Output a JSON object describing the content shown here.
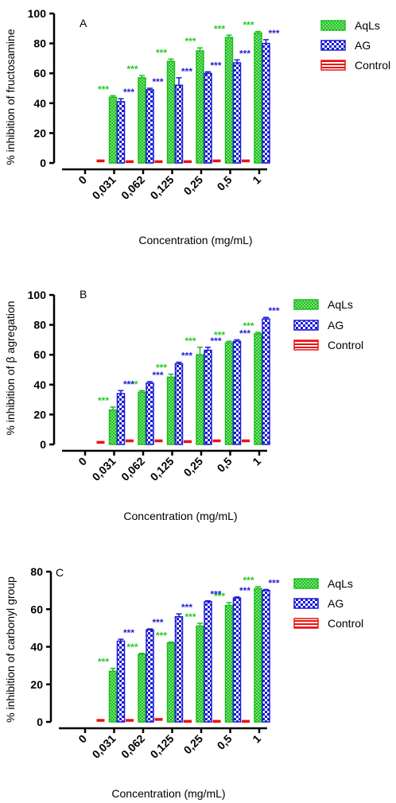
{
  "colors": {
    "aqls": "#1cbf1c",
    "ag": "#1a1ad6",
    "control": "#ee1111",
    "aqls_sig": "#22cc22",
    "ag_sig": "#2222dd"
  },
  "significance_label": "***",
  "chart_data": [
    {
      "type": "bar",
      "panel_label": "A",
      "title": "",
      "xlabel": "Concentration (mg/mL)",
      "ylabel": "% inhibition of fructosamine",
      "categories": [
        "0",
        "0,031",
        "0,062",
        "0,125",
        "0,25",
        "0,5",
        "1"
      ],
      "ylim": [
        0,
        100
      ],
      "yticks": [
        0,
        20,
        40,
        60,
        80,
        100
      ],
      "legend_position": "top-right",
      "series": [
        {
          "name": "AqLs",
          "values": [
            null,
            44,
            57,
            68,
            75,
            84,
            87
          ],
          "errors": [
            null,
            1,
            1.5,
            1.5,
            2,
            1.5,
            1
          ],
          "significance": [
            false,
            true,
            true,
            true,
            true,
            true,
            true
          ]
        },
        {
          "name": "AG",
          "values": [
            null,
            41,
            49,
            52,
            60,
            67,
            80
          ],
          "errors": [
            null,
            2,
            1,
            5,
            1,
            2,
            2.5
          ],
          "significance": [
            false,
            true,
            true,
            true,
            true,
            true,
            true
          ]
        },
        {
          "name": "Control",
          "values": [
            null,
            1,
            0.5,
            0.5,
            0.5,
            1,
            1
          ],
          "errors": [
            null,
            0,
            0,
            0,
            0,
            0,
            0
          ],
          "significance": [
            false,
            false,
            false,
            false,
            false,
            false,
            false
          ]
        }
      ]
    },
    {
      "type": "bar",
      "panel_label": "B",
      "title": "",
      "xlabel": "Concentration (mg/mL)",
      "ylabel": "% inhibition of β agregation",
      "categories": [
        "0",
        "0,031",
        "0,062",
        "0,125",
        "0,25",
        "0,5",
        "1"
      ],
      "ylim": [
        0,
        100
      ],
      "yticks": [
        0,
        20,
        40,
        60,
        80,
        100
      ],
      "legend_position": "top-right",
      "series": [
        {
          "name": "AqLs",
          "values": [
            null,
            23,
            35,
            45,
            60,
            68,
            74
          ],
          "errors": [
            null,
            2,
            1,
            2,
            5,
            1,
            1
          ],
          "significance": [
            false,
            true,
            true,
            true,
            true,
            true,
            true
          ]
        },
        {
          "name": "AG",
          "values": [
            null,
            34,
            41,
            54,
            63,
            69,
            84
          ],
          "errors": [
            null,
            2,
            1,
            1,
            2,
            1,
            1
          ],
          "significance": [
            false,
            true,
            true,
            true,
            true,
            true,
            true
          ]
        },
        {
          "name": "Control",
          "values": [
            null,
            1,
            2,
            2,
            1.5,
            2,
            2
          ],
          "errors": [
            null,
            0,
            0,
            0,
            0,
            0,
            0
          ],
          "significance": [
            false,
            false,
            false,
            false,
            false,
            false,
            false
          ]
        }
      ]
    },
    {
      "type": "bar",
      "panel_label": "C",
      "title": "",
      "xlabel": "Concentration (mg/mL)",
      "ylabel": "% inhibition of carbonyl group",
      "categories": [
        "0",
        "0,031",
        "0,062",
        "0,125",
        "0,25",
        "0,5",
        "1"
      ],
      "ylim": [
        0,
        80
      ],
      "yticks": [
        0,
        20,
        40,
        60,
        80
      ],
      "legend_position": "top-right",
      "series": [
        {
          "name": "AqLs",
          "values": [
            null,
            27,
            36,
            42,
            51,
            62,
            71
          ],
          "errors": [
            null,
            1.5,
            0.5,
            0.5,
            1.5,
            1.5,
            1
          ],
          "significance": [
            false,
            true,
            true,
            true,
            true,
            true,
            true
          ]
        },
        {
          "name": "AG",
          "values": [
            null,
            43,
            49,
            56,
            64,
            66,
            70
          ],
          "errors": [
            null,
            1,
            0.5,
            1.5,
            0.5,
            0.5,
            0.5
          ],
          "significance": [
            false,
            true,
            true,
            true,
            true,
            true,
            true
          ]
        },
        {
          "name": "Control",
          "values": [
            null,
            0.5,
            0.5,
            1,
            0,
            0,
            0
          ],
          "errors": [
            null,
            0,
            0,
            0,
            0,
            0,
            0
          ],
          "significance": [
            false,
            false,
            false,
            false,
            false,
            false,
            false
          ]
        }
      ]
    }
  ]
}
